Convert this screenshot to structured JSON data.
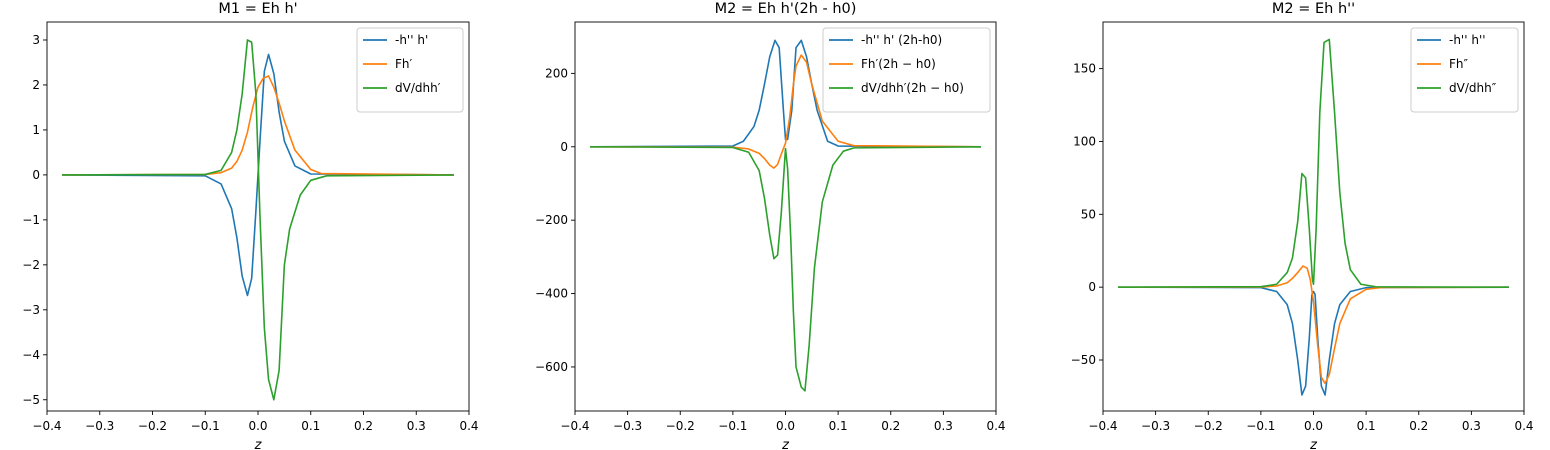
{
  "figure": {
    "width": 1550,
    "height": 450
  },
  "colors": {
    "c0": "#1f77b4",
    "c1": "#ff7f0e",
    "c2": "#2ca02c"
  },
  "chart_data": [
    {
      "type": "line",
      "title": "M1 = Eh h'",
      "xlabel": "z",
      "ylabel": "",
      "xlim": [
        -0.4,
        0.4
      ],
      "ylim": [
        -5.25,
        3.4
      ],
      "xticks": [
        -0.4,
        -0.3,
        -0.2,
        -0.1,
        0.0,
        0.1,
        0.2,
        0.3,
        0.4
      ],
      "xtick_labels": [
        "−0.4",
        "−0.3",
        "−0.2",
        "−0.1",
        "0.0",
        "0.1",
        "0.2",
        "0.3",
        "0.4"
      ],
      "yticks": [
        -5,
        -4,
        -3,
        -2,
        -1,
        0,
        1,
        2,
        3
      ],
      "ytick_labels": [
        "−5",
        "−4",
        "−3",
        "−2",
        "−1",
        "0",
        "1",
        "2",
        "3"
      ],
      "legend_position": "top-right",
      "series": [
        {
          "name": "-h'' h'",
          "color": "#1f77b4",
          "x": [
            -0.37,
            -0.1,
            -0.07,
            -0.05,
            -0.04,
            -0.03,
            -0.02,
            -0.012,
            -0.004,
            0.0,
            0.004,
            0.012,
            0.02,
            0.03,
            0.04,
            0.05,
            0.07,
            0.1,
            0.37
          ],
          "y": [
            0,
            -0.02,
            -0.2,
            -0.75,
            -1.4,
            -2.25,
            -2.68,
            -2.3,
            -0.8,
            0.0,
            0.8,
            2.3,
            2.68,
            2.25,
            1.4,
            0.75,
            0.2,
            0.02,
            0
          ]
        },
        {
          "name": "Fh′",
          "color": "#ff7f0e",
          "x": [
            -0.37,
            -0.1,
            -0.07,
            -0.05,
            -0.04,
            -0.03,
            -0.02,
            -0.01,
            0.0,
            0.01,
            0.02,
            0.03,
            0.04,
            0.05,
            0.07,
            0.1,
            0.12,
            0.37
          ],
          "y": [
            0,
            0.01,
            0.05,
            0.15,
            0.3,
            0.55,
            0.95,
            1.5,
            1.95,
            2.15,
            2.2,
            1.95,
            1.6,
            1.2,
            0.55,
            0.12,
            0.03,
            0
          ]
        },
        {
          "name": "dV/dhh′",
          "color": "#2ca02c",
          "x": [
            -0.37,
            -0.1,
            -0.07,
            -0.05,
            -0.04,
            -0.03,
            -0.02,
            -0.012,
            -0.004,
            0.0,
            0.004,
            0.012,
            0.02,
            0.03,
            0.04,
            0.05,
            0.06,
            0.08,
            0.1,
            0.13,
            0.37
          ],
          "y": [
            0,
            0.01,
            0.1,
            0.5,
            1.0,
            1.8,
            3.0,
            2.95,
            1.8,
            0.4,
            -1.0,
            -3.4,
            -4.55,
            -5.0,
            -4.35,
            -2.0,
            -1.2,
            -0.45,
            -0.12,
            -0.02,
            0
          ]
        }
      ]
    },
    {
      "type": "line",
      "title": "M2 = Eh h'(2h - h0)",
      "xlabel": "z",
      "ylabel": "",
      "xlim": [
        -0.4,
        0.4
      ],
      "ylim": [
        -720,
        340
      ],
      "xticks": [
        -0.4,
        -0.3,
        -0.2,
        -0.1,
        0.0,
        0.1,
        0.2,
        0.3,
        0.4
      ],
      "xtick_labels": [
        "−0.4",
        "−0.3",
        "−0.2",
        "−0.1",
        "0.0",
        "0.1",
        "0.2",
        "0.3",
        "0.4"
      ],
      "yticks": [
        -600,
        -400,
        -200,
        0,
        200
      ],
      "ytick_labels": [
        "−600",
        "−400",
        "−200",
        "0",
        "200"
      ],
      "legend_position": "top-right",
      "series": [
        {
          "name": "-h'' h' (2h-h0)",
          "color": "#1f77b4",
          "x": [
            -0.37,
            -0.1,
            -0.08,
            -0.06,
            -0.05,
            -0.04,
            -0.03,
            -0.02,
            -0.012,
            -0.004,
            0.0,
            0.004,
            0.012,
            0.02,
            0.03,
            0.04,
            0.05,
            0.06,
            0.08,
            0.1,
            0.37
          ],
          "y": [
            0,
            2,
            15,
            55,
            100,
            170,
            245,
            290,
            270,
            100,
            20,
            20,
            100,
            270,
            290,
            245,
            170,
            100,
            15,
            2,
            0
          ]
        },
        {
          "name": "Fh′(2h − h0)",
          "color": "#ff7f0e",
          "x": [
            -0.37,
            -0.1,
            -0.07,
            -0.05,
            -0.04,
            -0.03,
            -0.022,
            -0.015,
            -0.008,
            0.0,
            0.008,
            0.015,
            0.02,
            0.03,
            0.04,
            0.05,
            0.07,
            0.1,
            0.13,
            0.37
          ],
          "y": [
            0,
            -1,
            -6,
            -18,
            -32,
            -50,
            -58,
            -48,
            -20,
            10,
            80,
            170,
            220,
            250,
            230,
            170,
            70,
            15,
            3,
            0
          ]
        },
        {
          "name": "dV/dhh′(2h − h0)",
          "color": "#2ca02c",
          "x": [
            -0.37,
            -0.1,
            -0.07,
            -0.05,
            -0.04,
            -0.03,
            -0.022,
            -0.015,
            -0.008,
            0.0,
            0.004,
            0.01,
            0.015,
            0.02,
            0.03,
            0.037,
            0.045,
            0.055,
            0.07,
            0.09,
            0.11,
            0.13,
            0.37
          ],
          "y": [
            0,
            -2,
            -15,
            -65,
            -140,
            -240,
            -305,
            -295,
            -180,
            -5,
            -60,
            -250,
            -450,
            -600,
            -655,
            -665,
            -540,
            -330,
            -150,
            -50,
            -12,
            -3,
            0
          ]
        }
      ]
    },
    {
      "type": "line",
      "title": "M2 = Eh h''",
      "xlabel": "z",
      "ylabel": "",
      "xlim": [
        -0.4,
        0.4
      ],
      "ylim": [
        -85,
        182
      ],
      "xticks": [
        -0.4,
        -0.3,
        -0.2,
        -0.1,
        0.0,
        0.1,
        0.2,
        0.3,
        0.4
      ],
      "xtick_labels": [
        "−0.4",
        "−0.3",
        "−0.2",
        "−0.1",
        "0.0",
        "0.1",
        "0.2",
        "0.3",
        "0.4"
      ],
      "yticks": [
        -50,
        0,
        50,
        100,
        150
      ],
      "ytick_labels": [
        "−50",
        "0",
        "50",
        "100",
        "150"
      ],
      "legend_position": "top-right",
      "series": [
        {
          "name": "-h'' h''",
          "color": "#1f77b4",
          "x": [
            -0.37,
            -0.1,
            -0.07,
            -0.05,
            -0.04,
            -0.03,
            -0.022,
            -0.015,
            -0.008,
            -0.003,
            0.0,
            0.003,
            0.008,
            0.015,
            0.022,
            0.03,
            0.04,
            0.05,
            0.07,
            0.1,
            0.37
          ],
          "y": [
            0,
            -0.3,
            -3,
            -12,
            -25,
            -50,
            -74,
            -68,
            -35,
            -5,
            -3,
            -5,
            -35,
            -68,
            -74,
            -50,
            -25,
            -12,
            -3,
            -0.3,
            0
          ]
        },
        {
          "name": "Fh″",
          "color": "#ff7f0e",
          "x": [
            -0.37,
            -0.1,
            -0.07,
            -0.05,
            -0.04,
            -0.03,
            -0.02,
            -0.012,
            -0.006,
            0.0,
            0.008,
            0.015,
            0.022,
            0.03,
            0.04,
            0.05,
            0.07,
            0.1,
            0.13,
            0.37
          ],
          "y": [
            0,
            0.1,
            0.8,
            3,
            6,
            10,
            14.5,
            13,
            5,
            -10,
            -40,
            -62,
            -66,
            -60,
            -42,
            -25,
            -8,
            -1.5,
            -0.2,
            0
          ]
        },
        {
          "name": "dV/dhh″",
          "color": "#2ca02c",
          "x": [
            -0.37,
            -0.1,
            -0.07,
            -0.05,
            -0.04,
            -0.03,
            -0.022,
            -0.015,
            -0.008,
            -0.002,
            0.0,
            0.005,
            0.012,
            0.02,
            0.03,
            0.04,
            0.05,
            0.06,
            0.07,
            0.09,
            0.12,
            0.37
          ],
          "y": [
            0,
            0.3,
            2,
            10,
            20,
            45,
            78,
            75,
            40,
            5,
            2,
            40,
            120,
            168,
            170,
            120,
            65,
            30,
            12,
            2,
            0.2,
            0
          ]
        }
      ]
    }
  ]
}
